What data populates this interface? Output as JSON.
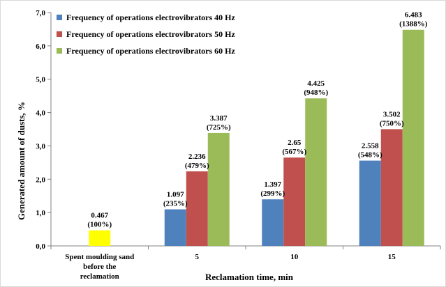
{
  "chart_data": {
    "type": "bar",
    "ylabel": "Generated amount of dusts, %",
    "xlabel": "Reclamation time, min",
    "ylim": [
      0,
      7
    ],
    "ytick_labels": [
      "0,0",
      "1,0",
      "2,0",
      "3,0",
      "4,0",
      "5,0",
      "6,0",
      "7,0"
    ],
    "categories": [
      [
        "Spent moulding sand",
        "before the",
        "reclamation"
      ],
      [
        "5"
      ],
      [
        "10"
      ],
      [
        "15"
      ]
    ],
    "baseline": {
      "category_index": 0,
      "value": 0.467,
      "label": "0.467",
      "percent": "(100%)",
      "color": "#ffff00"
    },
    "legend": {
      "position": "top-left"
    },
    "series": [
      {
        "name": "Frequency of operations electrovibrators 40 Hz",
        "color": "#4f81bd",
        "values": [
          null,
          1.097,
          1.397,
          2.558
        ],
        "labels": [
          null,
          "1.097",
          "1.397",
          "2.558"
        ],
        "percents": [
          null,
          "(235%)",
          "(299%)",
          "(548%)"
        ]
      },
      {
        "name": "Frequency of operations electrovibrators 50 Hz",
        "color": "#c0504d",
        "values": [
          null,
          2.236,
          2.65,
          3.502
        ],
        "labels": [
          null,
          "2.236",
          "2.65",
          "3.502"
        ],
        "percents": [
          null,
          "(479%)",
          "(567%)",
          "(750%)"
        ]
      },
      {
        "name": "Frequency of operations electrovibrators 60 Hz",
        "color": "#9bbb59",
        "values": [
          null,
          3.387,
          4.425,
          6.483
        ],
        "labels": [
          null,
          "3.387",
          "4.425",
          "6.483"
        ],
        "percents": [
          null,
          "(725%)",
          "(948%)",
          "(1388%)"
        ]
      }
    ]
  }
}
